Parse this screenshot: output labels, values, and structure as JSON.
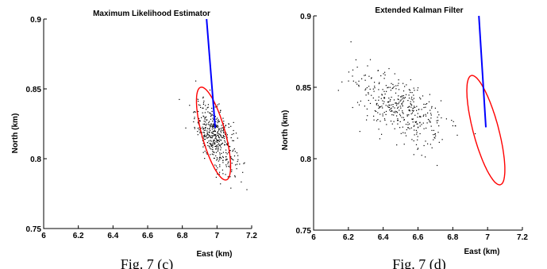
{
  "chart_data": [
    {
      "type": "scatter",
      "title": "Maximum Likelihood Estimator",
      "xlabel": "East (km)",
      "ylabel": "North (km)",
      "xlim": [
        6,
        7.2
      ],
      "ylim": [
        0.75,
        0.9
      ],
      "xticks": [
        "6",
        "6.2",
        "6.4",
        "6.6",
        "6.8",
        "7",
        "7.2"
      ],
      "yticks": [
        "0.75",
        "0.8",
        "0.85",
        "0.9"
      ],
      "caption": "Fig. 7 (c)",
      "grid": false,
      "scatter": {
        "center": [
          6.99,
          0.816
        ],
        "sd": [
          0.06,
          0.012
        ],
        "corr": -0.55,
        "count": 450,
        "color": "#000000"
      },
      "trajectory": {
        "x": [
          6.94,
          6.99
        ],
        "y": [
          0.9,
          0.822
        ],
        "color": "#0000ff"
      },
      "ellipse": {
        "center": [
          6.98,
          0.818
        ],
        "semi_axes_dir": [
          [
            0.09,
            -0.031
          ],
          [
            -0.04,
            -0.012
          ]
        ],
        "color": "#ff0000"
      }
    },
    {
      "type": "scatter",
      "title": "Extended Kalman Filter",
      "xlabel": "East (km)",
      "ylabel": "North (km)",
      "xlim": [
        6,
        7.2
      ],
      "ylim": [
        0.75,
        0.9
      ],
      "xticks": [
        "6",
        "6.2",
        "6.4",
        "6.6",
        "6.8",
        "7",
        "7.2"
      ],
      "yticks": [
        "0.75",
        "0.8",
        "0.85",
        "0.9"
      ],
      "caption": "Fig. 7 (d)",
      "grid": false,
      "scatter": {
        "center": [
          6.5,
          0.835
        ],
        "sd": [
          0.13,
          0.013
        ],
        "corr": -0.6,
        "count": 380,
        "color": "#000000"
      },
      "trajectory": {
        "x": [
          6.95,
          6.99
        ],
        "y": [
          0.9,
          0.822
        ],
        "color": "#0000ff"
      },
      "ellipse": {
        "center": [
          6.99,
          0.82
        ],
        "semi_axes_dir": [
          [
            0.1,
            -0.036
          ],
          [
            -0.044,
            -0.013
          ]
        ],
        "color": "#ff0000"
      }
    }
  ]
}
